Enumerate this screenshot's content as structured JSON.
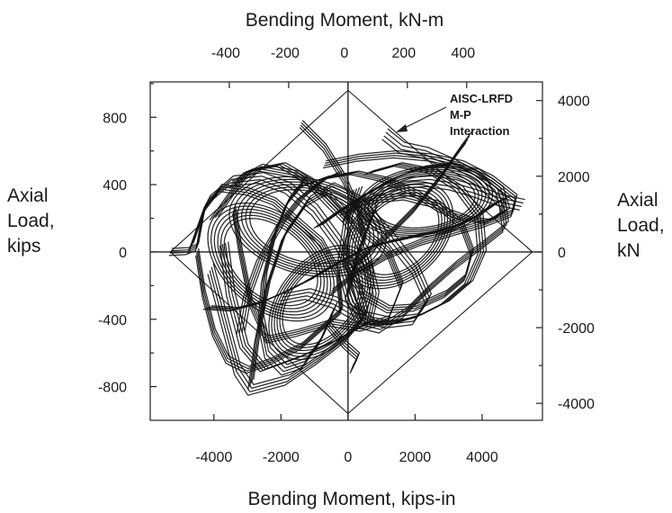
{
  "chart_data": {
    "type": "line",
    "title": "",
    "top_axis": {
      "label": "Bending Moment, kN-m",
      "ticks": [
        "-400",
        "-200",
        "0",
        "200",
        "400"
      ],
      "tick_values": [
        -400,
        -200,
        0,
        200,
        400
      ]
    },
    "bottom_axis": {
      "label": "Bending  Moment, kips-in",
      "ticks": [
        "-4000",
        "-2000",
        "0",
        "2000",
        "4000"
      ],
      "tick_values": [
        -4000,
        -2000,
        0,
        2000,
        4000
      ],
      "xlim": [
        -5900,
        5800
      ]
    },
    "left_axis": {
      "label_lines": [
        "Axial",
        "Load,",
        "kips"
      ],
      "ticks": [
        "800",
        "400",
        "0",
        "-400",
        "-800"
      ],
      "tick_values": [
        800,
        400,
        0,
        -400,
        -800
      ],
      "ylim": [
        -1000,
        1010
      ]
    },
    "right_axis": {
      "label_lines": [
        "Axial",
        "Load,",
        "kN"
      ],
      "ticks": [
        "4000",
        "2000",
        "0",
        "-2000",
        "-4000"
      ],
      "tick_values": [
        4000,
        2000,
        0,
        -2000,
        -4000
      ]
    },
    "annotation": {
      "lines": [
        "AISC-LRFD",
        "M-P",
        "Interaction"
      ]
    },
    "envelope": {
      "name": "AISC-LRFD M-P Interaction",
      "points": [
        [
          0,
          960
        ],
        [
          5500,
          0
        ],
        [
          0,
          -960
        ],
        [
          -5300,
          0
        ]
      ]
    },
    "hysteresis": {
      "description_style": "dense cyclic loops",
      "loops": [
        {
          "center": [
            -2300,
            -60
          ],
          "rx": 1700,
          "ry": 330,
          "tilt": -0.55
        },
        {
          "center": [
            1500,
            100
          ],
          "rx": 1500,
          "ry": 300,
          "tilt": 0.45
        },
        {
          "center": [
            -1200,
            150
          ],
          "rx": 2200,
          "ry": 280,
          "tilt": -0.35
        },
        {
          "center": [
            2300,
            300
          ],
          "rx": 1900,
          "ry": 200,
          "tilt": 0.3
        },
        {
          "center": [
            -800,
            -300
          ],
          "rx": 1400,
          "ry": 320,
          "tilt": 0.5
        }
      ],
      "paths": [
        [
          [
            -5300,
            0
          ],
          [
            -4800,
            5
          ],
          [
            -4500,
            30
          ],
          [
            -4300,
            250
          ],
          [
            -3800,
            380
          ],
          [
            -3000,
            360
          ],
          [
            -2200,
            300
          ],
          [
            -1500,
            180
          ],
          [
            -800,
            60
          ],
          [
            -300,
            -120
          ],
          [
            -200,
            -350
          ],
          [
            -600,
            -420
          ],
          [
            -1400,
            -560
          ],
          [
            -2300,
            -650
          ],
          [
            -3000,
            -700
          ],
          [
            -3600,
            -640
          ],
          [
            -4000,
            -480
          ],
          [
            -4300,
            -250
          ],
          [
            -4500,
            0
          ]
        ],
        [
          [
            -4700,
            20
          ],
          [
            -4200,
            300
          ],
          [
            -3500,
            420
          ],
          [
            -2600,
            440
          ],
          [
            -1800,
            380
          ],
          [
            -1000,
            250
          ],
          [
            -300,
            60
          ],
          [
            200,
            -150
          ],
          [
            500,
            -380
          ],
          [
            0,
            -500
          ],
          [
            -900,
            -640
          ],
          [
            -1800,
            -760
          ],
          [
            -2900,
            -820
          ],
          [
            -3300,
            -700
          ],
          [
            -3700,
            -400
          ],
          [
            -4100,
            -100
          ]
        ],
        [
          [
            -4000,
            200
          ],
          [
            -3000,
            480
          ],
          [
            -2000,
            520
          ],
          [
            -1200,
            430
          ],
          [
            -600,
            300
          ],
          [
            0,
            180
          ],
          [
            500,
            0
          ],
          [
            800,
            -250
          ],
          [
            600,
            -420
          ],
          [
            -300,
            -520
          ],
          [
            -1400,
            -620
          ],
          [
            -2500,
            -700
          ],
          [
            -3100,
            -560
          ],
          [
            -3500,
            -250
          ],
          [
            -3700,
            50
          ]
        ],
        [
          [
            -3500,
            400
          ],
          [
            -2600,
            500
          ],
          [
            -1500,
            460
          ],
          [
            -600,
            340
          ],
          [
            300,
            150
          ],
          [
            1200,
            0
          ],
          [
            1600,
            -200
          ],
          [
            1200,
            -400
          ],
          [
            400,
            -450
          ],
          [
            -500,
            -420
          ],
          [
            -1500,
            -480
          ],
          [
            -2400,
            -520
          ],
          [
            -2900,
            -300
          ],
          [
            -3200,
            0
          ],
          [
            -3400,
            250
          ]
        ],
        [
          [
            -2900,
            -790
          ],
          [
            -2700,
            -500
          ],
          [
            -2400,
            -200
          ],
          [
            -1900,
            100
          ],
          [
            -1200,
            300
          ],
          [
            -500,
            380
          ],
          [
            300,
            300
          ],
          [
            1200,
            100
          ],
          [
            2000,
            -100
          ],
          [
            2400,
            -280
          ],
          [
            2000,
            -400
          ],
          [
            1200,
            -420
          ],
          [
            300,
            -380
          ],
          [
            -400,
            -300
          ],
          [
            -1200,
            -250
          ],
          [
            -2000,
            -280
          ]
        ],
        [
          [
            -1500,
            380
          ],
          [
            -700,
            440
          ],
          [
            200,
            470
          ],
          [
            1100,
            430
          ],
          [
            2000,
            350
          ],
          [
            2800,
            250
          ],
          [
            3500,
            200
          ],
          [
            4200,
            180
          ],
          [
            4700,
            250
          ],
          [
            4500,
            380
          ],
          [
            3800,
            480
          ],
          [
            3000,
            520
          ],
          [
            2200,
            500
          ],
          [
            1400,
            440
          ],
          [
            600,
            350
          ],
          [
            -200,
            250
          ],
          [
            -900,
            150
          ]
        ],
        [
          [
            -700,
            520
          ],
          [
            300,
            560
          ],
          [
            1400,
            580
          ],
          [
            2500,
            560
          ],
          [
            3400,
            520
          ],
          [
            4300,
            430
          ],
          [
            5000,
            320
          ],
          [
            4900,
            230
          ],
          [
            4100,
            170
          ],
          [
            3200,
            120
          ],
          [
            2200,
            60
          ],
          [
            1200,
            -20
          ],
          [
            300,
            -120
          ],
          [
            -500,
            -240
          ]
        ],
        [
          [
            1100,
            700
          ],
          [
            1600,
            620
          ],
          [
            2300,
            590
          ],
          [
            3100,
            520
          ],
          [
            3900,
            430
          ],
          [
            4600,
            300
          ],
          [
            4700,
            150
          ],
          [
            4000,
            40
          ],
          [
            3200,
            -80
          ],
          [
            2400,
            -220
          ],
          [
            1700,
            -360
          ],
          [
            1000,
            -450
          ],
          [
            400,
            -420
          ],
          [
            0,
            -250
          ],
          [
            300,
            0
          ],
          [
            800,
            250
          ]
        ],
        [
          [
            600,
            470
          ],
          [
            1500,
            520
          ],
          [
            2500,
            480
          ],
          [
            3300,
            380
          ],
          [
            3900,
            220
          ],
          [
            4000,
            0
          ],
          [
            3600,
            -180
          ],
          [
            2900,
            -300
          ],
          [
            2100,
            -380
          ],
          [
            1400,
            -420
          ],
          [
            700,
            -420
          ],
          [
            100,
            -300
          ],
          [
            -200,
            -80
          ],
          [
            0,
            200
          ],
          [
            300,
            380
          ]
        ],
        [
          [
            -200,
            240
          ],
          [
            700,
            310
          ],
          [
            1700,
            330
          ],
          [
            2700,
            280
          ],
          [
            3400,
            160
          ],
          [
            3700,
            0
          ],
          [
            3500,
            -150
          ],
          [
            2900,
            -250
          ],
          [
            2000,
            -330
          ],
          [
            1200,
            -340
          ],
          [
            500,
            -260
          ],
          [
            0,
            -120
          ]
        ],
        [
          [
            -1300,
            420
          ],
          [
            -1800,
            300
          ],
          [
            -2200,
            100
          ],
          [
            -2500,
            -150
          ],
          [
            -2600,
            -400
          ],
          [
            -2400,
            -600
          ],
          [
            -1900,
            -700
          ],
          [
            -1300,
            -660
          ],
          [
            -800,
            -520
          ],
          [
            -400,
            -330
          ]
        ],
        [
          [
            -3200,
            -480
          ],
          [
            -3000,
            -260
          ],
          [
            -2600,
            -40
          ],
          [
            -2000,
            170
          ],
          [
            -1400,
            320
          ],
          [
            -800,
            420
          ],
          [
            -300,
            470
          ]
        ],
        [
          [
            -1400,
            760
          ],
          [
            -700,
            620
          ],
          [
            -100,
            430
          ],
          [
            300,
            240
          ],
          [
            500,
            60
          ]
        ],
        [
          [
            3600,
            680
          ],
          [
            3300,
            600
          ],
          [
            2700,
            430
          ],
          [
            2000,
            260
          ],
          [
            1300,
            120
          ],
          [
            700,
            20
          ],
          [
            200,
            -80
          ]
        ],
        [
          [
            4700,
            320
          ],
          [
            4400,
            290
          ],
          [
            3900,
            220
          ],
          [
            3300,
            160
          ],
          [
            2600,
            120
          ],
          [
            1900,
            90
          ],
          [
            1200,
            60
          ],
          [
            500,
            20
          ],
          [
            0,
            -30
          ],
          [
            -600,
            -100
          ],
          [
            -1200,
            -170
          ],
          [
            -1900,
            -240
          ],
          [
            -2600,
            -300
          ],
          [
            -3400,
            -340
          ],
          [
            -4200,
            -330
          ]
        ],
        [
          [
            -600,
            -430
          ],
          [
            -100,
            -550
          ],
          [
            300,
            -620
          ],
          [
            100,
            -700
          ]
        ],
        [
          [
            5200,
            280
          ],
          [
            4500,
            310
          ],
          [
            3800,
            360
          ],
          [
            3100,
            400
          ],
          [
            2400,
            420
          ],
          [
            1700,
            410
          ],
          [
            1000,
            370
          ],
          [
            400,
            300
          ],
          [
            -100,
            210
          ]
        ]
      ]
    }
  }
}
